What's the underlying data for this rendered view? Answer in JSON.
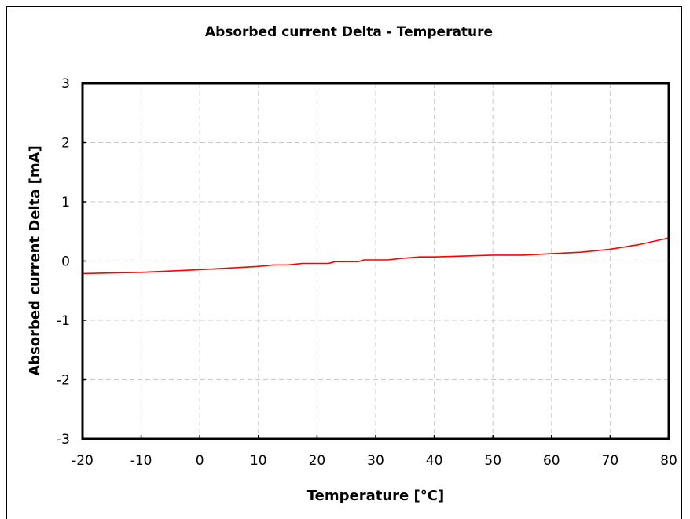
{
  "chart_data": {
    "type": "line",
    "title": "Absorbed current Delta - Temperature",
    "xlabel": "Temperature [°C]",
    "ylabel": "Absorbed current Delta [mA]",
    "xlim": [
      -20,
      80
    ],
    "ylim": [
      -3,
      3
    ],
    "x_ticks": [
      -20,
      -10,
      0,
      10,
      20,
      30,
      40,
      50,
      60,
      70,
      80
    ],
    "y_ticks": [
      -3,
      -2,
      -1,
      0,
      1,
      2,
      3
    ],
    "grid": true,
    "legend": "none",
    "series": [
      {
        "color": "#ff0000",
        "x": [
          -20,
          -10,
          0,
          10,
          12.5,
          15,
          17.5,
          20,
          22,
          23,
          25,
          27,
          28,
          30,
          32,
          35,
          37.5,
          40,
          45,
          50,
          55,
          60,
          65,
          70,
          75,
          80
        ],
        "y": [
          -0.21,
          -0.19,
          -0.145,
          -0.09,
          -0.065,
          -0.065,
          -0.04,
          -0.04,
          -0.04,
          -0.01,
          -0.01,
          -0.01,
          0.02,
          0.02,
          0.02,
          0.05,
          0.07,
          0.07,
          0.085,
          0.1,
          0.1,
          0.125,
          0.15,
          0.2,
          0.28,
          0.39
        ]
      }
    ]
  }
}
